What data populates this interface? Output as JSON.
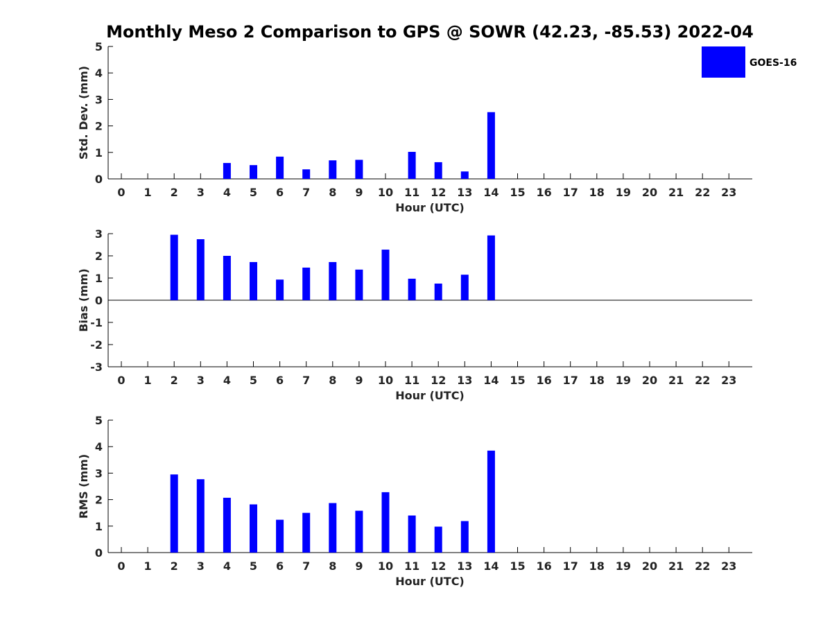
{
  "title": "Monthly Meso 2 Comparison to GPS @ SOWR (42.23, -85.53) 2022-04",
  "legend": {
    "label": "GOES-16",
    "color": "#0000ff"
  },
  "chart_data": [
    {
      "type": "bar",
      "ylabel": "Std. Dev. (mm)",
      "xlabel": "Hour (UTC)",
      "categories": [
        "0",
        "1",
        "2",
        "3",
        "4",
        "5",
        "6",
        "7",
        "8",
        "9",
        "10",
        "11",
        "12",
        "13",
        "14",
        "15",
        "16",
        "17",
        "18",
        "19",
        "20",
        "21",
        "22",
        "23"
      ],
      "ylim": [
        0,
        5
      ],
      "yticks": [
        "0",
        "1",
        "2",
        "3",
        "4",
        "5"
      ],
      "series": [
        {
          "name": "GOES-16",
          "values": [
            null,
            null,
            null,
            null,
            0.6,
            0.52,
            0.84,
            0.36,
            0.7,
            0.72,
            null,
            1.02,
            0.63,
            0.28,
            2.52,
            null,
            null,
            null,
            null,
            null,
            null,
            null,
            null,
            null
          ]
        }
      ]
    },
    {
      "type": "bar",
      "ylabel": "Bias (mm)",
      "xlabel": "Hour (UTC)",
      "categories": [
        "0",
        "1",
        "2",
        "3",
        "4",
        "5",
        "6",
        "7",
        "8",
        "9",
        "10",
        "11",
        "12",
        "13",
        "14",
        "15",
        "16",
        "17",
        "18",
        "19",
        "20",
        "21",
        "22",
        "23"
      ],
      "ylim": [
        -3,
        3
      ],
      "yticks": [
        "-3",
        "-2",
        "-1",
        "0",
        "1",
        "2",
        "3"
      ],
      "zero_line": true,
      "series": [
        {
          "name": "GOES-16",
          "values": [
            null,
            null,
            2.95,
            2.75,
            2.0,
            1.72,
            0.93,
            1.47,
            1.72,
            1.38,
            2.28,
            0.97,
            0.75,
            1.15,
            2.92,
            null,
            null,
            null,
            null,
            null,
            null,
            null,
            null,
            null
          ]
        }
      ]
    },
    {
      "type": "bar",
      "ylabel": "RMS (mm)",
      "xlabel": "Hour (UTC)",
      "categories": [
        "0",
        "1",
        "2",
        "3",
        "4",
        "5",
        "6",
        "7",
        "8",
        "9",
        "10",
        "11",
        "12",
        "13",
        "14",
        "15",
        "16",
        "17",
        "18",
        "19",
        "20",
        "21",
        "22",
        "23"
      ],
      "ylim": [
        0,
        5
      ],
      "yticks": [
        "0",
        "1",
        "2",
        "3",
        "4",
        "5"
      ],
      "series": [
        {
          "name": "GOES-16",
          "values": [
            null,
            null,
            2.95,
            2.77,
            2.07,
            1.82,
            1.24,
            1.5,
            1.87,
            1.58,
            2.28,
            1.4,
            0.98,
            1.19,
            3.85,
            null,
            null,
            null,
            null,
            null,
            null,
            null,
            null,
            null
          ]
        }
      ]
    }
  ]
}
